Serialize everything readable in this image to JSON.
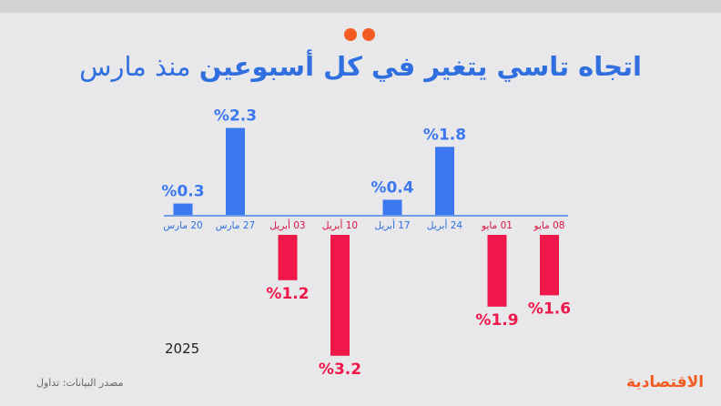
{
  "title_bold": "اتجاه تاسي يتغير في كل أسبوعين",
  "title_light": "منذ مارس",
  "year_label": "2025",
  "source": "مصدر البيانات: تداول",
  "logo": "الاقتصادية",
  "colors": {
    "positive": "#3b78f0",
    "negative": "#f0174a",
    "accent": "#f25c22"
  },
  "chart_data": {
    "type": "bar",
    "categories": [
      "20 مارس",
      "27 مارس",
      "03 أبريل",
      "10 أبريل",
      "17 أبريل",
      "24 أبريل",
      "01 مايو",
      "08 مايو"
    ],
    "values": [
      0.3,
      2.3,
      -1.2,
      -3.2,
      0.4,
      1.8,
      -1.9,
      -1.6
    ],
    "labels": [
      "%0.3",
      "%2.3",
      "%1.2",
      "%3.2",
      "%0.4",
      "%1.8",
      "%1.9",
      "%1.6"
    ],
    "unit": "%",
    "grid": false,
    "legend": "none"
  }
}
